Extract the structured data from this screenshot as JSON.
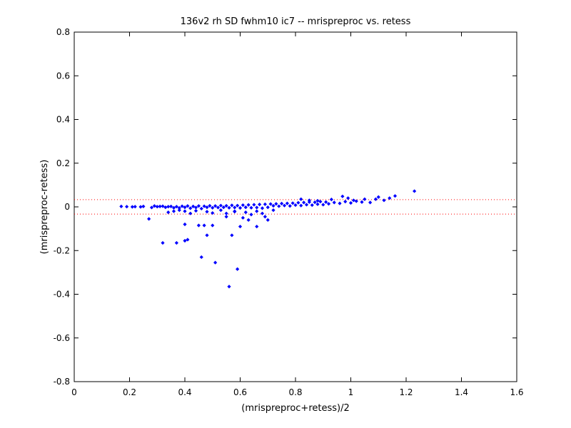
{
  "chart_data": {
    "type": "scatter",
    "title": "136v2 rh SD fwhm10 ic7 -- mrispreproc vs. retess",
    "xlabel": "(mrispreproc+retess)/2",
    "ylabel": "(mrispreproc-retess)",
    "xlim": [
      0,
      1.6
    ],
    "ylim": [
      -0.8,
      0.8
    ],
    "xticks": [
      "0",
      "0.2",
      "0.4",
      "0.6",
      "0.8",
      "1",
      "1.2",
      "1.4",
      "1.6"
    ],
    "yticks": [
      "0.8",
      "0.6",
      "0.4",
      "0.2",
      "0",
      "-0.2",
      "-0.4",
      "-0.6",
      "-0.8"
    ],
    "grid": false,
    "point_color": "#0000ff",
    "reference_line_color": "#ff0000",
    "reference_lines_y": [
      0.033,
      -0.033
    ],
    "series": [
      {
        "points": [
          [
            0.17,
            0.002
          ],
          [
            0.19,
            0.001
          ],
          [
            0.21,
            0.0
          ],
          [
            0.22,
            0.001
          ],
          [
            0.24,
            0.0
          ],
          [
            0.25,
            0.002
          ],
          [
            0.27,
            -0.055
          ],
          [
            0.28,
            -0.003
          ],
          [
            0.29,
            0.004
          ],
          [
            0.3,
            0.001
          ],
          [
            0.31,
            0.002
          ],
          [
            0.32,
            0.003
          ],
          [
            0.33,
            -0.002
          ],
          [
            0.34,
            0.001
          ],
          [
            0.35,
            0.002
          ],
          [
            0.36,
            -0.004
          ],
          [
            0.37,
            0.001
          ],
          [
            0.38,
            -0.005
          ],
          [
            0.39,
            0.003
          ],
          [
            0.4,
            -0.002
          ],
          [
            0.41,
            0.004
          ],
          [
            0.42,
            -0.006
          ],
          [
            0.43,
            0.002
          ],
          [
            0.44,
            -0.003
          ],
          [
            0.45,
            0.004
          ],
          [
            0.46,
            -0.008
          ],
          [
            0.47,
            0.003
          ],
          [
            0.48,
            -0.002
          ],
          [
            0.49,
            0.005
          ],
          [
            0.5,
            -0.004
          ],
          [
            0.51,
            0.004
          ],
          [
            0.52,
            -0.003
          ],
          [
            0.53,
            0.006
          ],
          [
            0.54,
            -0.002
          ],
          [
            0.55,
            0.005
          ],
          [
            0.56,
            -0.004
          ],
          [
            0.57,
            0.007
          ],
          [
            0.58,
            -0.003
          ],
          [
            0.59,
            0.006
          ],
          [
            0.6,
            -0.005
          ],
          [
            0.61,
            0.008
          ],
          [
            0.62,
            -0.002
          ],
          [
            0.63,
            0.009
          ],
          [
            0.64,
            -0.004
          ],
          [
            0.65,
            0.01
          ],
          [
            0.66,
            -0.003
          ],
          [
            0.67,
            0.011
          ],
          [
            0.68,
            -0.006
          ],
          [
            0.69,
            0.012
          ],
          [
            0.7,
            -0.002
          ],
          [
            0.71,
            0.013
          ],
          [
            0.72,
            0.005
          ],
          [
            0.73,
            0.014
          ],
          [
            0.74,
            0.003
          ],
          [
            0.75,
            0.015
          ],
          [
            0.76,
            0.006
          ],
          [
            0.77,
            0.016
          ],
          [
            0.78,
            0.004
          ],
          [
            0.79,
            0.017
          ],
          [
            0.8,
            0.008
          ],
          [
            0.81,
            0.019
          ],
          [
            0.82,
            0.006
          ],
          [
            0.83,
            0.02
          ],
          [
            0.84,
            0.01
          ],
          [
            0.85,
            0.022
          ],
          [
            0.86,
            0.008
          ],
          [
            0.87,
            0.021
          ],
          [
            0.88,
            0.012
          ],
          [
            0.89,
            0.024
          ],
          [
            0.9,
            0.01
          ],
          [
            0.91,
            0.022
          ],
          [
            0.92,
            0.014
          ],
          [
            0.94,
            0.02
          ],
          [
            0.96,
            0.016
          ],
          [
            0.98,
            0.024
          ],
          [
            1.0,
            0.018
          ],
          [
            1.02,
            0.026
          ],
          [
            1.04,
            0.022
          ],
          [
            0.82,
            0.035
          ],
          [
            0.85,
            0.03
          ],
          [
            0.88,
            0.028
          ],
          [
            0.93,
            0.034
          ],
          [
            0.97,
            0.048
          ],
          [
            0.99,
            0.04
          ],
          [
            1.01,
            0.03
          ],
          [
            1.05,
            0.035
          ],
          [
            1.07,
            0.02
          ],
          [
            1.09,
            0.035
          ],
          [
            1.1,
            0.045
          ],
          [
            1.12,
            0.03
          ],
          [
            1.14,
            0.04
          ],
          [
            1.16,
            0.05
          ],
          [
            1.23,
            0.072
          ],
          [
            0.34,
            -0.025
          ],
          [
            0.36,
            -0.02
          ],
          [
            0.38,
            -0.015
          ],
          [
            0.4,
            -0.02
          ],
          [
            0.42,
            -0.03
          ],
          [
            0.44,
            -0.018
          ],
          [
            0.48,
            -0.022
          ],
          [
            0.5,
            -0.028
          ],
          [
            0.53,
            -0.015
          ],
          [
            0.55,
            -0.03
          ],
          [
            0.58,
            -0.022
          ],
          [
            0.62,
            -0.025
          ],
          [
            0.66,
            -0.02
          ],
          [
            0.68,
            -0.03
          ],
          [
            0.72,
            -0.015
          ],
          [
            0.4,
            -0.08
          ],
          [
            0.41,
            -0.15
          ],
          [
            0.4,
            -0.155
          ],
          [
            0.37,
            -0.165
          ],
          [
            0.32,
            -0.165
          ],
          [
            0.45,
            -0.085
          ],
          [
            0.46,
            -0.23
          ],
          [
            0.47,
            -0.085
          ],
          [
            0.48,
            -0.13
          ],
          [
            0.5,
            -0.085
          ],
          [
            0.51,
            -0.255
          ],
          [
            0.55,
            -0.045
          ],
          [
            0.56,
            -0.365
          ],
          [
            0.57,
            -0.13
          ],
          [
            0.59,
            -0.285
          ],
          [
            0.61,
            -0.05
          ],
          [
            0.63,
            -0.06
          ],
          [
            0.6,
            -0.09
          ],
          [
            0.66,
            -0.09
          ],
          [
            0.69,
            -0.045
          ],
          [
            0.7,
            -0.06
          ],
          [
            0.58,
            -0.02
          ],
          [
            0.64,
            -0.035
          ]
        ]
      }
    ]
  }
}
